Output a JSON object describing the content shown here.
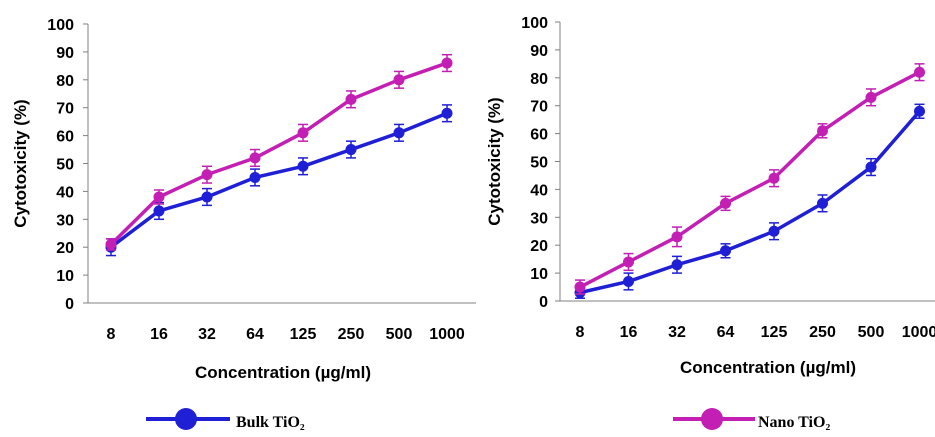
{
  "chart_data": [
    {
      "type": "line",
      "categories": [
        "8",
        "16",
        "32",
        "64",
        "125",
        "250",
        "500",
        "1000"
      ],
      "xlabel": "Concentration (µg/ml)",
      "ylabel": "Cytotoxicity (%)",
      "ylim": [
        0,
        100
      ],
      "yticks": [
        "0",
        "10",
        "20",
        "30",
        "40",
        "50",
        "60",
        "70",
        "80",
        "90",
        "100"
      ],
      "grid": false,
      "series": [
        {
          "name": "Bulk TiO₂",
          "color": "#1f1fd6",
          "values": [
            20,
            33,
            38,
            45,
            49,
            55,
            61,
            68
          ],
          "errors": [
            3,
            3,
            3,
            3,
            3,
            3,
            3,
            3
          ]
        },
        {
          "name": "Nano TiO₂",
          "color": "#c31fb4",
          "values": [
            21,
            38,
            46,
            52,
            61,
            73,
            80,
            86
          ],
          "errors": [
            2,
            2.5,
            3,
            3,
            3,
            3,
            3,
            3
          ]
        }
      ]
    },
    {
      "type": "line",
      "categories": [
        "8",
        "16",
        "32",
        "64",
        "125",
        "250",
        "500",
        "1000"
      ],
      "xlabel": "Concentration (µg/ml)",
      "ylabel": "Cytotoxicity (%)",
      "ylim": [
        0,
        100
      ],
      "yticks": [
        "0",
        "10",
        "20",
        "30",
        "40",
        "50",
        "60",
        "70",
        "80",
        "90",
        "100"
      ],
      "grid": false,
      "series": [
        {
          "name": "Bulk TiO₂",
          "color": "#1f1fd6",
          "values": [
            3,
            7,
            13,
            18,
            25,
            35,
            48,
            68
          ],
          "errors": [
            2,
            3,
            3,
            2.5,
            3,
            3,
            3,
            2.5
          ]
        },
        {
          "name": "Nano TiO₂",
          "color": "#c31fb4",
          "values": [
            5,
            14,
            23,
            35,
            44,
            61,
            73,
            82
          ],
          "errors": [
            2.5,
            3,
            3.5,
            2.5,
            3,
            2.5,
            3,
            3
          ]
        }
      ]
    }
  ],
  "legend": [
    {
      "label": "Bulk TiO₂",
      "color": "#1f1fd6"
    },
    {
      "label": "Nano TiO₂",
      "color": "#c31fb4"
    }
  ]
}
